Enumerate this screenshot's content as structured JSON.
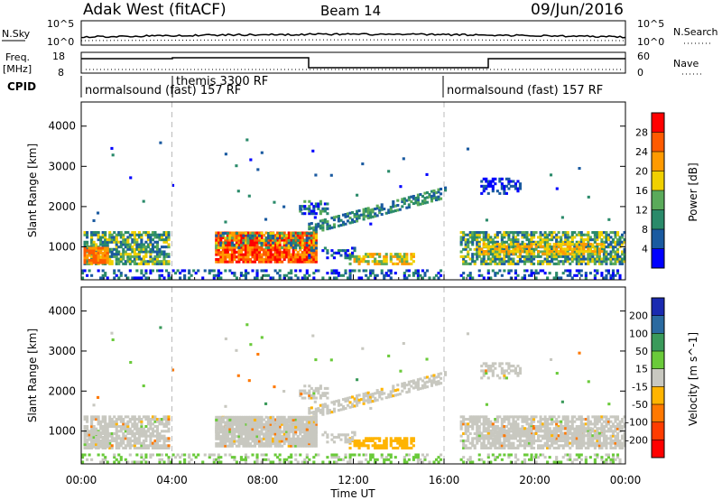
{
  "header": {
    "title": "Adak West (fitACF)",
    "beam": "Beam 14",
    "date": "09/Jun/2016"
  },
  "side_labels": {
    "nsky": "N.Sky",
    "nsearch": "N.Search",
    "freq": "Freq.",
    "freq_unit": "[MHz]",
    "nave": "Nave",
    "cpid": "CPID"
  },
  "noise_panel": {
    "left_ticks": [
      "10^5",
      "10^0"
    ],
    "right_ticks": [
      "10^5",
      "10^0"
    ]
  },
  "freq_panel": {
    "left_ticks": [
      "18",
      "8"
    ],
    "right_ticks": [
      "60",
      "0"
    ]
  },
  "cpid_labels": [
    {
      "text": "normalsound (fast) 157 RF",
      "start_hour": 0
    },
    {
      "text": "themis 3300 RF",
      "start_hour": 4
    },
    {
      "text": "normalsound (fast) 157 RF",
      "start_hour": 16
    }
  ],
  "chart_data": [
    {
      "type": "heatmap",
      "name": "power",
      "ylabel": "Slant Range [km]",
      "xlabel": "",
      "xlim": [
        0,
        24
      ],
      "ylim": [
        180,
        4600
      ],
      "yticks": [
        1000,
        2000,
        3000,
        4000
      ],
      "colorbar": {
        "label": "Power [dB]",
        "ticks": [
          "28",
          "24",
          "20",
          "16",
          "12",
          "8",
          "4"
        ],
        "colors": [
          "#ff0000",
          "#ff5a00",
          "#ff9a00",
          "#f0d000",
          "#5aaa5a",
          "#2a8a6a",
          "#1a5aa0",
          "#0000ff"
        ]
      },
      "features": [
        {
          "hours": [
            0,
            3.8
          ],
          "range_km": [
            550,
            1350
          ],
          "level": "medium"
        },
        {
          "hours": [
            6,
            10.3
          ],
          "range_km": [
            550,
            1350
          ],
          "level": "high"
        },
        {
          "hours": [
            10,
            16
          ],
          "range_km": [
            1300,
            2250
          ],
          "level": "low"
        },
        {
          "hours": [
            16.7,
            24
          ],
          "range_km": [
            550,
            1350
          ],
          "level": "medium"
        }
      ]
    },
    {
      "type": "heatmap",
      "name": "velocity",
      "ylabel": "Slant Range [km]",
      "xlabel": "Time UT",
      "xlim": [
        0,
        24
      ],
      "ylim": [
        180,
        4600
      ],
      "xticks": [
        "00:00",
        "04:00",
        "08:00",
        "12:00",
        "16:00",
        "20:00",
        "00:00"
      ],
      "yticks": [
        1000,
        2000,
        3000,
        4000
      ],
      "colorbar": {
        "label": "Velocity [m s^-1]",
        "ticks": [
          "200",
          "100",
          "50",
          "15",
          "-15",
          "-50",
          "-100",
          "-200"
        ],
        "colors": [
          "#1a2ab0",
          "#2a6aa0",
          "#3a9a5a",
          "#6aca3a",
          "#c8c8c0",
          "#ffb400",
          "#ff7800",
          "#ff3c00",
          "#ff0000"
        ]
      }
    }
  ]
}
